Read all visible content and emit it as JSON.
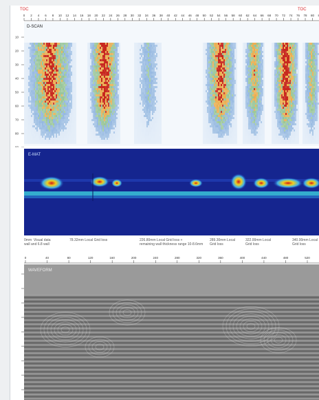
{
  "header": {
    "marker_left": "TOC",
    "marker_right": "TOC",
    "top_scale_labels": [
      "0",
      "2",
      "4",
      "6",
      "8",
      "10",
      "12",
      "14",
      "16",
      "18",
      "20",
      "22",
      "24",
      "26",
      "28",
      "30",
      "32",
      "34",
      "36",
      "38",
      "40",
      "42",
      "44",
      "46",
      "48",
      "50",
      "52",
      "54",
      "56",
      "58",
      "60",
      "62",
      "64",
      "66",
      "68",
      "70",
      "72",
      "74",
      "76",
      "78",
      "80",
      "82"
    ]
  },
  "panels": {
    "cscan_top": {
      "label": "D-SCAN",
      "label_color": "#222222"
    },
    "cscan_mid": {
      "label": "E-MAT",
      "label_color": "#cfe3ff"
    },
    "bscan": {
      "label": "WAVEFORM",
      "label_color": "#eeeeee"
    }
  },
  "captions": [
    "0mm  Visual data\nwall and 6.8 wall",
    "78.32mm Local Grid loss",
    "226.80mm Local Grid loss +\nremaining wall thickness range 10-8.6mm",
    "289.30mm Local\nGrid loss",
    "322.00mm Local\nGrid loss",
    "340.00mm Local\nGrid loss"
  ],
  "bscan_scale_labels": [
    "0",
    "40",
    "80",
    "120",
    "160",
    "200",
    "240",
    "280",
    "320",
    "360",
    "400",
    "440",
    "480",
    "520"
  ],
  "left_depth_labels": [
    "10",
    "20",
    "30",
    "40",
    "50",
    "60",
    "70",
    "80",
    "90"
  ],
  "colors": {
    "accent_marker": "#d8262a",
    "heat_hot": "#c8281e",
    "heat_warm": "#e8a030",
    "heat_cool": "#3f7fc8",
    "deep_blue": "#1a2fa8",
    "bscan_gray": "#7a7a7a"
  }
}
